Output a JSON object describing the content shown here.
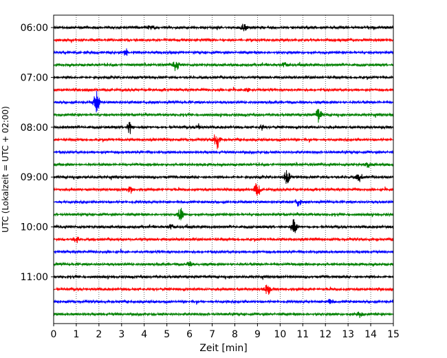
{
  "chart_data": {
    "type": "line",
    "title": "",
    "xlabel": "Zeit  [min]",
    "ylabel": "UTC (Lokalzeit = UTC + 02:00)",
    "xlim": [
      0,
      15
    ],
    "x_ticks": [
      "0",
      "1",
      "2",
      "3",
      "4",
      "5",
      "6",
      "7",
      "8",
      "9",
      "10",
      "11",
      "12",
      "13",
      "14",
      "15"
    ],
    "y_tick_labels": [
      "06:00",
      "07:00",
      "08:00",
      "09:00",
      "10:00",
      "11:00"
    ],
    "grid": "vertical dotted at each minute",
    "trace_interval_min": 15,
    "color_cycle": [
      "#000000",
      "#ff0000",
      "#0000ff",
      "#008000"
    ],
    "traces": [
      {
        "start": "06:00",
        "color": "#000000",
        "events": [
          {
            "t": 4.3,
            "amp": 0.5
          },
          {
            "t": 8.4,
            "amp": 0.6
          }
        ]
      },
      {
        "start": "06:15",
        "color": "#ff0000",
        "events": []
      },
      {
        "start": "06:30",
        "color": "#0000ff",
        "events": [
          {
            "t": 3.2,
            "amp": 0.5
          }
        ]
      },
      {
        "start": "06:45",
        "color": "#008000",
        "events": [
          {
            "t": 5.4,
            "amp": 1.0
          },
          {
            "t": 10.2,
            "amp": 0.4
          }
        ]
      },
      {
        "start": "07:00",
        "color": "#000000",
        "events": []
      },
      {
        "start": "07:15",
        "color": "#ff0000",
        "events": [
          {
            "t": 8.5,
            "amp": 0.5
          }
        ]
      },
      {
        "start": "07:30",
        "color": "#0000ff",
        "events": [
          {
            "t": 1.9,
            "amp": 1.8
          }
        ]
      },
      {
        "start": "07:45",
        "color": "#008000",
        "events": [
          {
            "t": 11.7,
            "amp": 1.2
          }
        ]
      },
      {
        "start": "08:00",
        "color": "#000000",
        "events": [
          {
            "t": 3.35,
            "amp": 1.0
          },
          {
            "t": 6.4,
            "amp": 0.4
          },
          {
            "t": 9.2,
            "amp": 0.4
          }
        ]
      },
      {
        "start": "08:15",
        "color": "#ff0000",
        "events": [
          {
            "t": 7.2,
            "amp": 1.6
          }
        ]
      },
      {
        "start": "08:30",
        "color": "#0000ff",
        "events": []
      },
      {
        "start": "08:45",
        "color": "#008000",
        "events": [
          {
            "t": 13.9,
            "amp": 0.4
          }
        ]
      },
      {
        "start": "09:00",
        "color": "#000000",
        "events": [
          {
            "t": 10.3,
            "amp": 1.2
          },
          {
            "t": 13.5,
            "amp": 0.7
          }
        ]
      },
      {
        "start": "09:15",
        "color": "#ff0000",
        "events": [
          {
            "t": 3.4,
            "amp": 0.6
          },
          {
            "t": 9.0,
            "amp": 1.4
          }
        ]
      },
      {
        "start": "09:30",
        "color": "#0000ff",
        "events": [
          {
            "t": 10.8,
            "amp": 0.7
          }
        ]
      },
      {
        "start": "09:45",
        "color": "#008000",
        "events": [
          {
            "t": 5.6,
            "amp": 1.0
          }
        ]
      },
      {
        "start": "10:00",
        "color": "#000000",
        "events": [
          {
            "t": 10.6,
            "amp": 1.5
          },
          {
            "t": 5.2,
            "amp": 0.4
          }
        ]
      },
      {
        "start": "10:15",
        "color": "#ff0000",
        "events": [
          {
            "t": 1.0,
            "amp": 0.5
          }
        ]
      },
      {
        "start": "10:30",
        "color": "#0000ff",
        "events": []
      },
      {
        "start": "10:45",
        "color": "#008000",
        "events": [
          {
            "t": 6.0,
            "amp": 0.4
          }
        ]
      },
      {
        "start": "11:00",
        "color": "#000000",
        "events": []
      },
      {
        "start": "11:15",
        "color": "#ff0000",
        "events": [
          {
            "t": 9.45,
            "amp": 1.0
          }
        ]
      },
      {
        "start": "11:30",
        "color": "#0000ff",
        "events": [
          {
            "t": 12.2,
            "amp": 0.4
          }
        ]
      },
      {
        "start": "11:45",
        "color": "#008000",
        "events": [
          {
            "t": 13.5,
            "amp": 0.5
          }
        ]
      }
    ]
  }
}
